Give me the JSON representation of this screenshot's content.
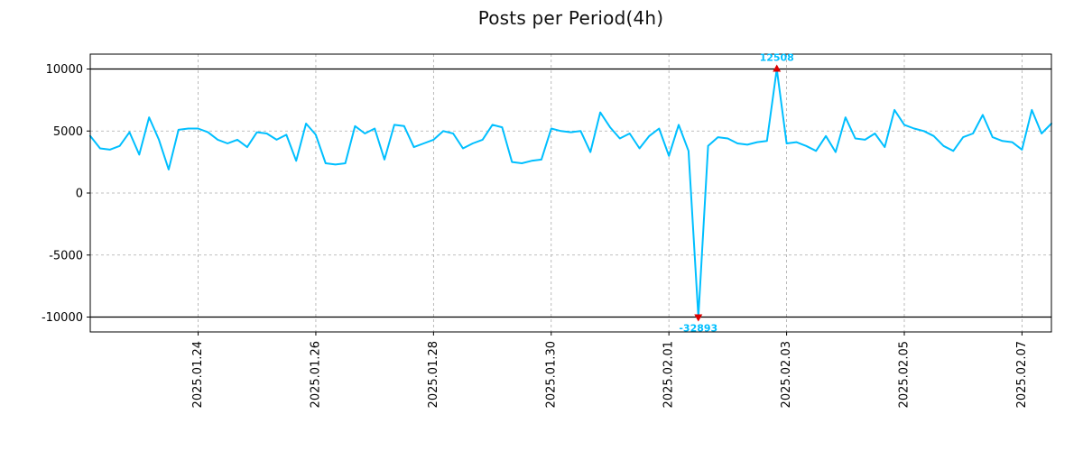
{
  "chart_data": {
    "type": "line",
    "title": "Posts per Period(4h)",
    "values": [
      4600,
      3600,
      3500,
      3800,
      4900,
      3100,
      6100,
      4300,
      1900,
      5100,
      5200,
      5200,
      4900,
      4300,
      4000,
      4300,
      3700,
      4900,
      4800,
      4300,
      4700,
      2600,
      5600,
      4700,
      2400,
      2300,
      2400,
      5400,
      4800,
      5200,
      2700,
      5500,
      5400,
      3700,
      4000,
      4300,
      5000,
      4800,
      3600,
      4000,
      4300,
      5500,
      5300,
      2500,
      2400,
      2600,
      2700,
      5200,
      5000,
      4900,
      5000,
      3300,
      6500,
      5300,
      4400,
      4800,
      3600,
      4600,
      5200,
      3000,
      5500,
      3400,
      -32893,
      3800,
      4500,
      4400,
      4000,
      3900,
      4100,
      4200,
      12508,
      4000,
      4100,
      3800,
      3400,
      4600,
      3300,
      6100,
      4400,
      4300,
      4800,
      3700,
      6700,
      5500,
      5200,
      5000,
      4600,
      3800,
      3400,
      4500,
      4800,
      6300,
      4500,
      4200,
      4100,
      3500,
      6700,
      4800,
      5600
    ],
    "x_tick_indices": [
      11,
      23,
      35,
      47,
      59,
      71,
      83,
      95
    ],
    "x_tick_labels": [
      "2025.01.24",
      "2025.01.26",
      "2025.01.28",
      "2025.01.30",
      "2025.02.01",
      "2025.02.03",
      "2025.02.05",
      "2025.02.07"
    ],
    "y_ticks": [
      -10000,
      -5000,
      0,
      5000,
      10000
    ],
    "y_tick_labels": [
      "-10000",
      "-5000",
      "0",
      "5000",
      "10000"
    ],
    "ylim": [
      -11200,
      11200
    ],
    "clip_lines": [
      -10000,
      10000
    ],
    "grid": true,
    "legend": "none",
    "annotations": [
      {
        "index": 70,
        "label": "12508",
        "placement": "above"
      },
      {
        "index": 62,
        "label": "-32893",
        "placement": "below"
      }
    ],
    "colors": {
      "line": "#00BFFF",
      "marker": "#DD0000",
      "annotation": "#00BFFF",
      "grid": "#AAAAAA",
      "frame": "#000000",
      "tick_text": "#000000",
      "background": "#FFFFFF"
    }
  }
}
